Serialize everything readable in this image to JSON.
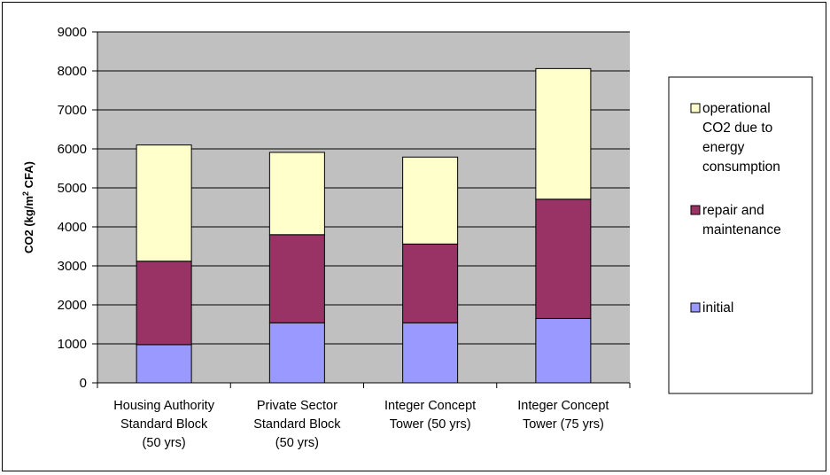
{
  "chart_data": {
    "type": "bar",
    "stacked": true,
    "categories": [
      [
        "Housing Authority",
        "Standard Block",
        "(50 yrs)"
      ],
      [
        "Private Sector",
        "Standard Block",
        "(50 yrs)"
      ],
      [
        "Integer Concept",
        "Tower (50 yrs)"
      ],
      [
        "Integer Concept",
        "Tower (75 yrs)"
      ]
    ],
    "series": [
      {
        "name": "initial",
        "values": [
          980,
          1540,
          1540,
          1650
        ],
        "color": "#9999FF"
      },
      {
        "name": "repair and maintenance",
        "values": [
          2140,
          2260,
          2020,
          3060
        ],
        "color": "#993366"
      },
      {
        "name": "operational CO2 due to energy consumption",
        "values": [
          2980,
          2110,
          2230,
          3350
        ],
        "color": "#FFFFCC"
      }
    ],
    "ylabel": "CO2 (kg/m² CFA)",
    "ylim": [
      0,
      9000
    ],
    "yticks": [
      "0",
      "1000",
      "2000",
      "3000",
      "4000",
      "5000",
      "6000",
      "7000",
      "8000",
      "9000"
    ],
    "grid": true,
    "plot_background": "#C0C0C0",
    "legend_position": "right",
    "legend": [
      {
        "lines": [
          "operational",
          "CO2 due to",
          "energy",
          "consumption"
        ],
        "color": "#FFFFCC"
      },
      {
        "lines": [
          "repair and",
          "maintenance"
        ],
        "color": "#993366"
      },
      {
        "lines": [
          "initial"
        ],
        "color": "#9999FF"
      }
    ]
  }
}
